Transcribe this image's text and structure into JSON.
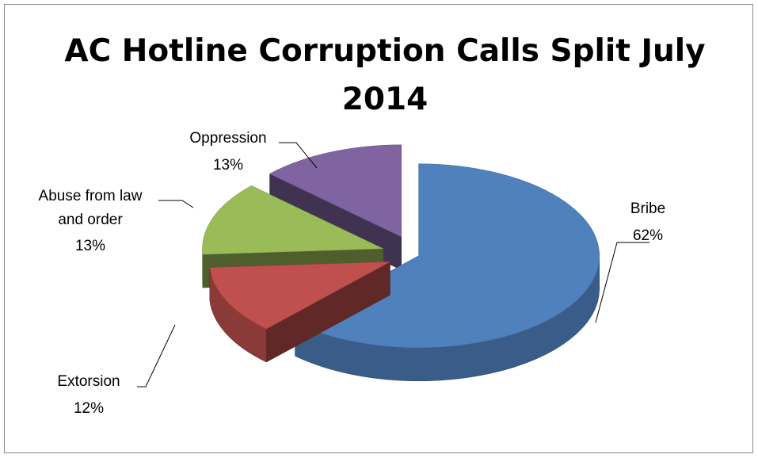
{
  "chart_data": {
    "type": "pie",
    "title": "AC Hotline Corruption Calls Split July 2014",
    "exploded": true,
    "three_d": true,
    "grid": false,
    "legend": "none",
    "slices": [
      {
        "name": "Bribe",
        "percent_label": "62%",
        "value": 62,
        "color": "#4F81BD"
      },
      {
        "name": "Extorsion",
        "percent_label": "12%",
        "value": 12,
        "color": "#C0504D"
      },
      {
        "name": "Abuse from law and order",
        "label_lines": [
          "Abuse from law",
          "and order"
        ],
        "percent_label": "13%",
        "value": 13,
        "color": "#9BBB59"
      },
      {
        "name": "Oppression",
        "percent_label": "13%",
        "value": 13,
        "color": "#8064A2"
      }
    ]
  }
}
